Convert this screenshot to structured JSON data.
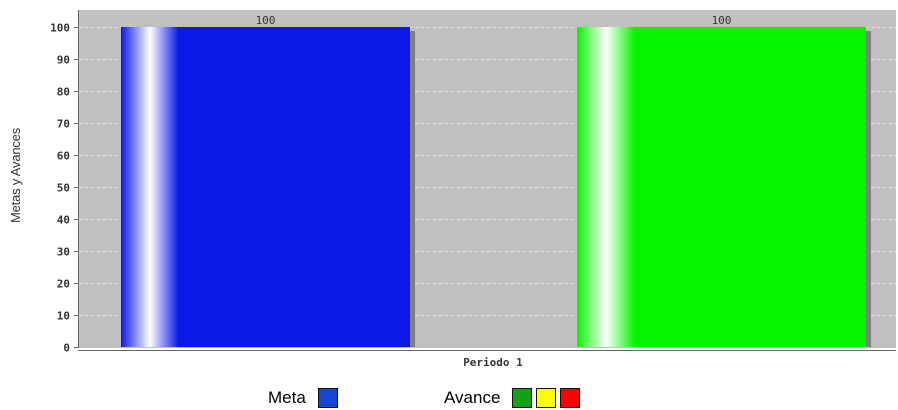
{
  "chart_data": {
    "type": "bar",
    "categories": [
      "Periodo 1"
    ],
    "series": [
      {
        "name": "Meta",
        "values": [
          100
        ],
        "color": "#0a19e6"
      },
      {
        "name": "Avance",
        "values": [
          100
        ],
        "color": "#05f500"
      }
    ],
    "data_labels": [
      "100",
      "100"
    ],
    "ylabel": "Metas y Avances",
    "xlabel": "",
    "ylim": [
      0,
      100
    ],
    "yticks": [
      0,
      10,
      20,
      30,
      40,
      50,
      60,
      70,
      80,
      90,
      100
    ],
    "grid": true,
    "plot_background": "#c0c0c0"
  },
  "legend": {
    "meta_label": "Meta",
    "meta_color": "#1446d2",
    "avance_label": "Avance",
    "avance_colors": [
      "#14a014",
      "#ffff00",
      "#ff0000"
    ]
  }
}
